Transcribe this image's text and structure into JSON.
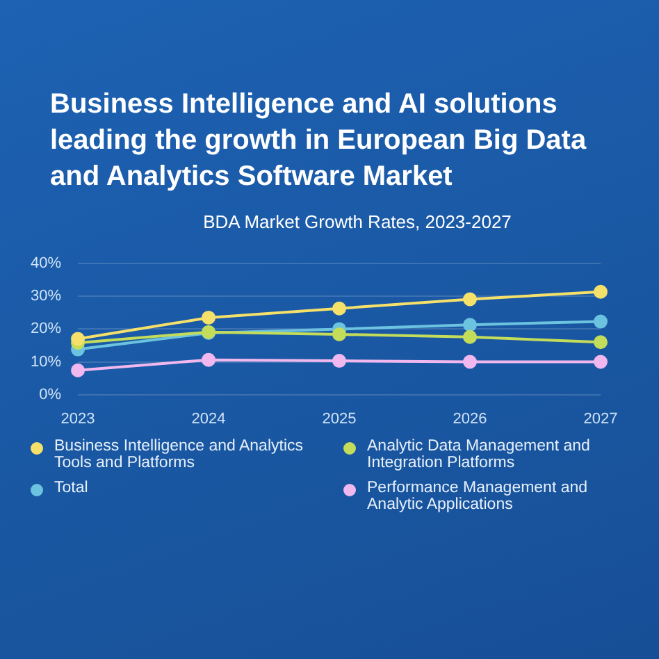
{
  "chart_data": {
    "type": "line",
    "title": "Business Intelligence and AI solutions leading the growth in European Big Data and Analytics Software Market",
    "subtitle": "BDA Market Growth Rates, 2023-2027",
    "categories": [
      "2023",
      "2024",
      "2025",
      "2026",
      "2027"
    ],
    "series": [
      {
        "name": "Business Intelligence and Analytics Tools and Platforms",
        "color": "#f5e06a",
        "values": [
          17.0,
          23.5,
          26.3,
          29.1,
          31.4
        ]
      },
      {
        "name": "Analytic Data Management and Integration Platforms",
        "color": "#c3dc5a",
        "values": [
          15.8,
          19.1,
          18.4,
          17.6,
          16.0
        ]
      },
      {
        "name": "Total",
        "color": "#6cc3e0",
        "values": [
          13.8,
          18.8,
          20.0,
          21.3,
          22.3
        ]
      },
      {
        "name": "Performance Management and Analytic Applications",
        "color": "#f0b8ee",
        "values": [
          7.4,
          10.6,
          10.3,
          10.0,
          10.0
        ]
      }
    ],
    "ylim": [
      0,
      40
    ],
    "yticks": [
      {
        "value": 0,
        "label": "0%"
      },
      {
        "value": 10,
        "label": "10%"
      },
      {
        "value": 20,
        "label": "20%"
      },
      {
        "value": 30,
        "label": "30%"
      },
      {
        "value": 40,
        "label": "40%"
      }
    ],
    "grid": "y",
    "legend": "bottom",
    "marker": "circle",
    "line_style": "solid"
  }
}
